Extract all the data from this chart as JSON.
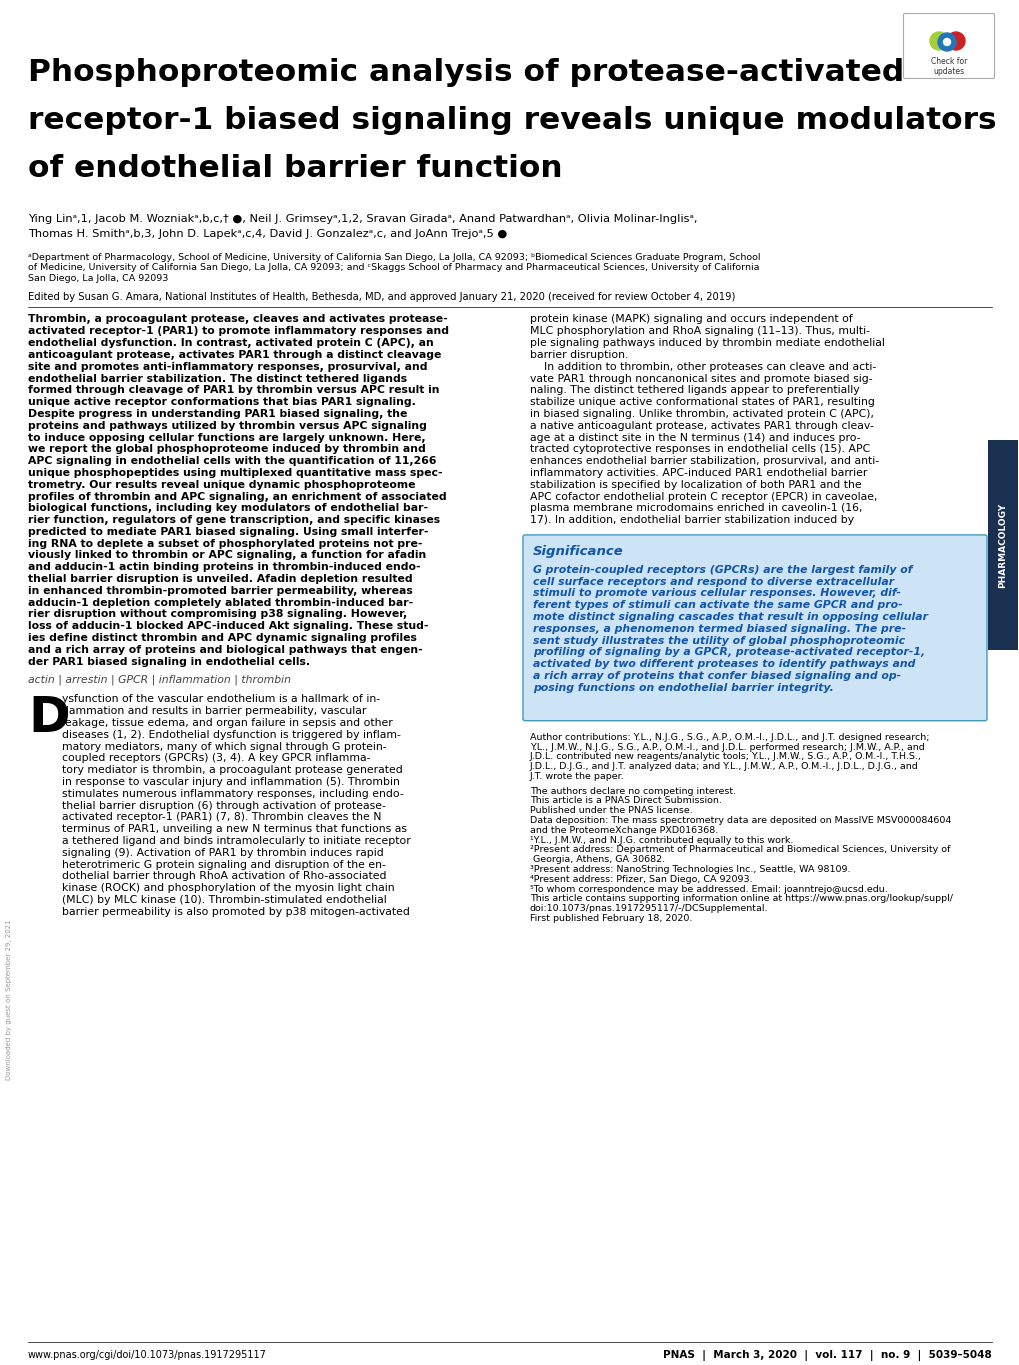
{
  "title_lines": [
    "Phosphoproteomic analysis of protease-activated",
    "receptor-1 biased signaling reveals unique modulators",
    "of endothelial barrier function"
  ],
  "author_line1": "Ying Linᵃ,1, Jacob M. Wozniakᵃ,b,c,† ●, Neil J. Grimseyᵃ,1,2, Sravan Giradaᵃ, Anand Patwardhanᵃ, Olivia Molinar-Inglisᵃ,",
  "author_line2": "Thomas H. Smithᵃ,b,3, John D. Lapekᵃ,c,4, David J. Gonzalezᵃ,c, and JoAnn Trejoᵃ,5 ●",
  "aff_lines": [
    "ᵃDepartment of Pharmacology, School of Medicine, University of California San Diego, La Jolla, CA 92093; ᵇBiomedical Sciences Graduate Program, School",
    "of Medicine, University of California San Diego, La Jolla, CA 92093; and ᶜSkaggs School of Pharmacy and Pharmaceutical Sciences, University of California",
    "San Diego, La Jolla, CA 92093"
  ],
  "edited_by": "Edited by Susan G. Amara, National Institutes of Health, Bethesda, MD, and approved January 21, 2020 (received for review October 4, 2019)",
  "abstract_left_lines": [
    "Thrombin, a procoagulant protease, cleaves and activates protease-",
    "activated receptor-1 (PAR1) to promote inflammatory responses and",
    "endothelial dysfunction. In contrast, activated protein C (APC), an",
    "anticoagulant protease, activates PAR1 through a distinct cleavage",
    "site and promotes anti-inflammatory responses, prosurvival, and",
    "endothelial barrier stabilization. The distinct tethered ligands",
    "formed through cleavage of PAR1 by thrombin versus APC result in",
    "unique active receptor conformations that bias PAR1 signaling.",
    "Despite progress in understanding PAR1 biased signaling, the",
    "proteins and pathways utilized by thrombin versus APC signaling",
    "to induce opposing cellular functions are largely unknown. Here,",
    "we report the global phosphoproteome induced by thrombin and",
    "APC signaling in endothelial cells with the quantification of 11,266",
    "unique phosphopeptides using multiplexed quantitative mass spec-",
    "trometry. Our results reveal unique dynamic phosphoproteome",
    "profiles of thrombin and APC signaling, an enrichment of associated",
    "biological functions, including key modulators of endothelial bar-",
    "rier function, regulators of gene transcription, and specific kinases",
    "predicted to mediate PAR1 biased signaling. Using small interfer-",
    "ing RNA to deplete a subset of phosphorylated proteins not pre-",
    "viously linked to thrombin or APC signaling, a function for afadin",
    "and adducin-1 actin binding proteins in thrombin-induced endo-",
    "thelial barrier disruption is unveiled. Afadin depletion resulted",
    "in enhanced thrombin-promoted barrier permeability, whereas",
    "adducin-1 depletion completely ablated thrombin-induced bar-",
    "rier disruption without compromising p38 signaling. However,",
    "loss of adducin-1 blocked APC-induced Akt signaling. These stud-",
    "ies define distinct thrombin and APC dynamic signaling profiles",
    "and a rich array of proteins and biological pathways that engen-",
    "der PAR1 biased signaling in endothelial cells."
  ],
  "keywords": "actin | arrestin | GPCR | inflammation | thrombin",
  "abstract_right_lines": [
    "protein kinase (MAPK) signaling and occurs independent of",
    "MLC phosphorylation and RhoA signaling (11–13). Thus, multi-",
    "ple signaling pathways induced by thrombin mediate endothelial",
    "barrier disruption.",
    "    In addition to thrombin, other proteases can cleave and acti-",
    "vate PAR1 through noncanonical sites and promote biased sig-",
    "naling. The distinct tethered ligands appear to preferentially",
    "stabilize unique active conformational states of PAR1, resulting",
    "in biased signaling. Unlike thrombin, activated protein C (APC),",
    "a native anticoagulant protease, activates PAR1 through cleav-",
    "age at a distinct site in the N terminus (14) and induces pro-",
    "tracted cytoprotective responses in endothelial cells (15). APC",
    "enhances endothelial barrier stabilization, prosurvival, and anti-",
    "inflammatory activities. APC-induced PAR1 endothelial barrier",
    "stabilization is specified by localization of both PAR1 and the",
    "APC cofactor endothelial protein C receptor (EPCR) in caveolae,",
    "plasma membrane microdomains enriched in caveolin-1 (16,",
    "17). In addition, endothelial barrier stabilization induced by"
  ],
  "significance_title": "Significance",
  "significance_lines": [
    "G protein-coupled receptors (GPCRs) are the largest family of",
    "cell surface receptors and respond to diverse extracellular",
    "stimuli to promote various cellular responses. However, dif-",
    "ferent types of stimuli can activate the same GPCR and pro-",
    "mote distinct signaling cascades that result in opposing cellular",
    "responses, a phenomenon termed biased signaling. The pre-",
    "sent study illustrates the utility of global phosphoproteomic",
    "profiling of signaling by a GPCR, protease-activated receptor-1,",
    "activated by two different proteases to identify pathways and",
    "a rich array of proteins that confer biased signaling and op-",
    "posing functions on endothelial barrier integrity."
  ],
  "body_left_lines": [
    "ysfunction of the vascular endothelium is a hallmark of in-",
    "flammation and results in barrier permeability, vascular",
    "leakage, tissue edema, and organ failure in sepsis and other",
    "diseases (1, 2). Endothelial dysfunction is triggered by inflam-",
    "matory mediators, many of which signal through G protein-",
    "coupled receptors (GPCRs) (3, 4). A key GPCR inflamma-",
    "tory mediator is thrombin, a procoagulant protease generated",
    "in response to vascular injury and inflammation (5). Thrombin",
    "stimulates numerous inflammatory responses, including endo-",
    "thelial barrier disruption (6) through activation of protease-",
    "activated receptor-1 (PAR1) (7, 8). Thrombin cleaves the N",
    "terminus of PAR1, unveiling a new N terminus that functions as",
    "a tethered ligand and binds intramolecularly to initiate receptor",
    "signaling (9). Activation of PAR1 by thrombin induces rapid",
    "heterotrimeric G protein signaling and disruption of the en-",
    "dothelial barrier through RhoA activation of Rho-associated",
    "kinase (ROCK) and phosphorylation of the myosin light chain",
    "(MLC) by MLC kinase (10). Thrombin-stimulated endothelial",
    "barrier permeability is also promoted by p38 mitogen-activated"
  ],
  "author_contrib_lines": [
    "Author contributions: Y.L., N.J.G., S.G., A.P., O.M.-I., J.D.L., and J.T. designed research;",
    "Y.L., J.M.W., N.J.G., S.G., A.P., O.M.-I., and J.D.L. performed research; J.M.W., A.P., and",
    "J.D.L. contributed new reagents/analytic tools; Y.L., J.M.W., S.G., A.P., O.M.-I., T.H.S.,",
    "J.D.L., D.J.G., and J.T. analyzed data; and Y.L., J.M.W., A.P., O.M.-I., J.D.L., D.J.G., and",
    "J.T. wrote the paper."
  ],
  "small_notes": [
    "The authors declare no competing interest.",
    "This article is a PNAS Direct Submission.",
    "Published under the PNAS license.",
    "Data deposition: The mass spectrometry data are deposited on MassIVE MSV000084604",
    "and the ProteomeXchange PXD016368.",
    "¹Y.L., J.M.W., and N.J.G. contributed equally to this work.",
    "²Present address: Department of Pharmaceutical and Biomedical Sciences, University of",
    " Georgia, Athens, GA 30682.",
    "³Present address: NanoString Technologies Inc., Seattle, WA 98109.",
    "⁴Present address: Pfizer, San Diego, CA 92093.",
    "⁵To whom correspondence may be addressed. Email: joanntrejo@ucsd.edu.",
    "This article contains supporting information online at https://www.pnas.org/lookup/suppl/",
    "doi:10.1073/pnas.1917295117/-/DCSupplemental.",
    "First published February 18, 2020."
  ],
  "footer_left": "www.pnas.org/cgi/doi/10.1073/pnas.1917295117",
  "footer_right": "PNAS  |  March 3, 2020  |  vol. 117  |  no. 9  |  5039–5048",
  "bg_color": "#ffffff",
  "sig_bg": "#cce4f5",
  "sig_border": "#4499bb",
  "sig_title_color": "#1155aa",
  "sig_text_color": "#1155aa",
  "sidebar_color": "#1a3050",
  "link_color": "#0066cc"
}
